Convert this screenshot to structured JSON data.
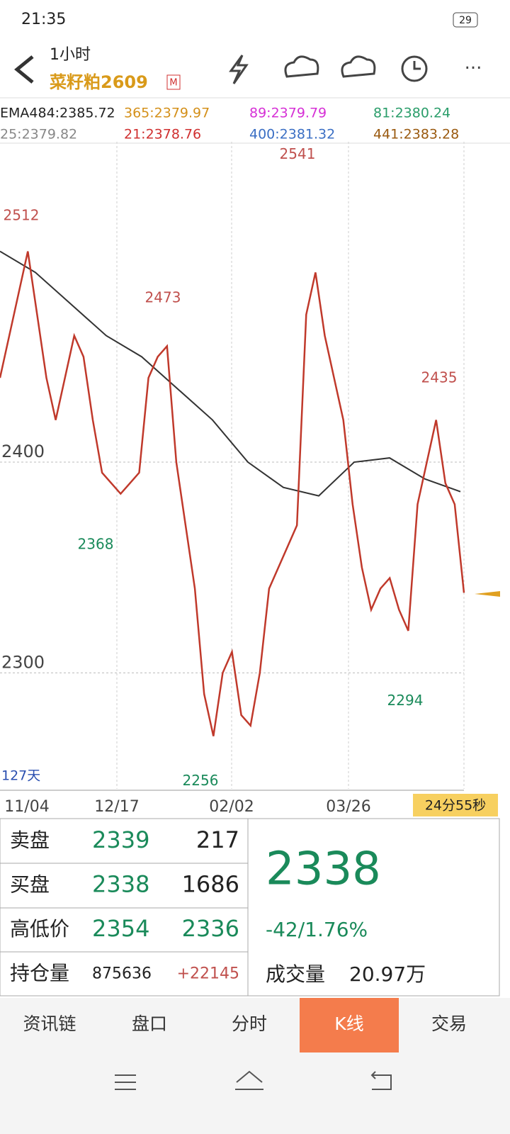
{
  "status_bar": {
    "time": "21:35",
    "battery": "29"
  },
  "header": {
    "period": "1小时",
    "symbol": "菜籽粕2609",
    "badge": "M"
  },
  "legend": [
    [
      "EMA484:2385.72",
      "365:2379.97",
      "89:2379.79",
      "81:2380.24"
    ],
    [
      "25:2379.82",
      "21:2378.76",
      "400:2381.32",
      "441:2383.28"
    ]
  ],
  "chart": {
    "ylim": [
      2245,
      2552
    ],
    "yticks": [
      2400,
      2300
    ],
    "close": [
      2440,
      2460,
      2480,
      2500,
      2470,
      2440,
      2420,
      2440,
      2460,
      2450,
      2420,
      2395,
      2390,
      2385,
      2390,
      2395,
      2440,
      2450,
      2455,
      2400,
      2370,
      2340,
      2290,
      2270,
      2300,
      2310,
      2280,
      2275,
      2300,
      2340,
      2350,
      2360,
      2370,
      2470,
      2490,
      2460,
      2440,
      2420,
      2380,
      2350,
      2330,
      2340,
      2345,
      2330,
      2320,
      2380,
      2400,
      2420,
      2390,
      2380,
      2338
    ],
    "ema": [
      2500,
      2490,
      2475,
      2460,
      2450,
      2435,
      2420,
      2400,
      2388,
      2384,
      2400,
      2402,
      2392,
      2386
    ],
    "highs": [
      2512,
      2473,
      2541,
      2435
    ],
    "lows": [
      2368,
      2256,
      2294
    ],
    "days": "127天",
    "dates": [
      "11/04",
      "12/17",
      "02/02",
      "03/26"
    ],
    "countdown": "24分55秒"
  },
  "quote": {
    "rows": [
      [
        "卖盘",
        2339,
        217
      ],
      [
        "买盘",
        2338,
        1686
      ],
      [
        "高低价",
        2354,
        2336
      ],
      [
        "持仓量",
        875636,
        "+22145"
      ]
    ],
    "last": 2338,
    "change": "-42/1.76%",
    "volume_label": "成交量",
    "volume": "20.97万"
  },
  "tabs": [
    "资讯链",
    "盘口",
    "分时",
    "K线",
    "交易"
  ]
}
